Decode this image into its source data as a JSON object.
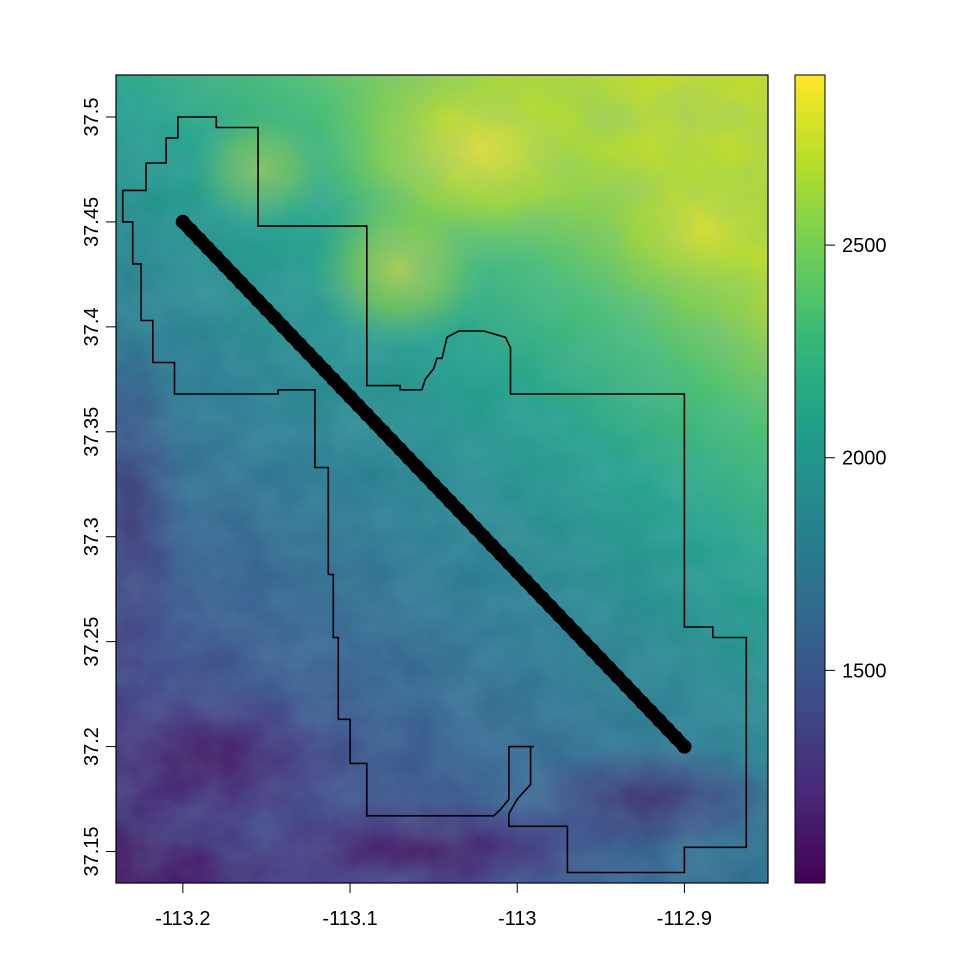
{
  "map": {
    "title": "",
    "x_axis": {
      "range": [
        -113.24,
        -112.85
      ],
      "ticks": [
        -113.2,
        -113.1,
        -113.0,
        -112.9
      ],
      "tick_labels": [
        "-113.2",
        "-113.1",
        "-113",
        "-112.9"
      ]
    },
    "y_axis": {
      "range": [
        37.135,
        37.52
      ],
      "ticks": [
        37.15,
        37.2,
        37.25,
        37.3,
        37.35,
        37.4,
        37.45,
        37.5
      ],
      "tick_labels": [
        "37.15",
        "37.2",
        "37.25",
        "37.3",
        "37.35",
        "37.4",
        "37.45",
        "37.5"
      ]
    },
    "legend": {
      "placement": "right",
      "range": [
        1000,
        2900
      ],
      "ticks": [
        1500,
        2000,
        2500
      ],
      "tick_labels": [
        "1500",
        "2000",
        "2500"
      ],
      "palette": [
        "#440154",
        "#482878",
        "#3e4a89",
        "#31688e",
        "#26828e",
        "#1f9e89",
        "#35b779",
        "#6ece58",
        "#b5de2b",
        "#fde725"
      ]
    },
    "transect_line": {
      "start": [
        -113.2,
        37.45
      ],
      "end": [
        -112.9,
        37.2
      ],
      "color": "#000000"
    },
    "boundary_polygon": [
      [
        -113.2,
        37.5
      ],
      [
        -113.18,
        37.5
      ],
      [
        -113.18,
        37.495
      ],
      [
        -113.155,
        37.495
      ],
      [
        -113.155,
        37.448
      ],
      [
        -113.09,
        37.448
      ],
      [
        -113.09,
        37.372
      ],
      [
        -113.07,
        37.372
      ],
      [
        -113.07,
        37.37
      ],
      [
        -113.057,
        37.37
      ],
      [
        -113.055,
        37.375
      ],
      [
        -113.05,
        37.38
      ],
      [
        -113.048,
        37.385
      ],
      [
        -113.045,
        37.385
      ],
      [
        -113.042,
        37.395
      ],
      [
        -113.035,
        37.398
      ],
      [
        -113.02,
        37.398
      ],
      [
        -113.007,
        37.395
      ],
      [
        -113.004,
        37.39
      ],
      [
        -113.004,
        37.368
      ],
      [
        -112.9,
        37.368
      ],
      [
        -112.9,
        37.257
      ],
      [
        -112.883,
        37.257
      ],
      [
        -112.883,
        37.252
      ],
      [
        -112.863,
        37.252
      ],
      [
        -112.863,
        37.152
      ],
      [
        -112.9,
        37.152
      ],
      [
        -112.9,
        37.14
      ],
      [
        -112.97,
        37.14
      ],
      [
        -112.97,
        37.162
      ],
      [
        -113.005,
        37.162
      ],
      [
        -113.005,
        37.168
      ],
      [
        -113.0,
        37.175
      ],
      [
        -112.992,
        37.182
      ],
      [
        -112.992,
        37.2
      ],
      [
        -112.99,
        37.2
      ],
      [
        -112.99,
        37.2
      ],
      [
        -113.005,
        37.2
      ],
      [
        -113.005,
        37.175
      ],
      [
        -113.01,
        37.17
      ],
      [
        -113.014,
        37.167
      ],
      [
        -113.09,
        37.167
      ],
      [
        -113.09,
        37.192
      ],
      [
        -113.1,
        37.192
      ],
      [
        -113.1,
        37.213
      ],
      [
        -113.107,
        37.213
      ],
      [
        -113.107,
        37.252
      ],
      [
        -113.11,
        37.252
      ],
      [
        -113.11,
        37.282
      ],
      [
        -113.113,
        37.282
      ],
      [
        -113.113,
        37.333
      ],
      [
        -113.121,
        37.333
      ],
      [
        -113.121,
        37.37
      ],
      [
        -113.143,
        37.37
      ],
      [
        -113.143,
        37.368
      ],
      [
        -113.205,
        37.368
      ],
      [
        -113.205,
        37.383
      ],
      [
        -113.218,
        37.383
      ],
      [
        -113.218,
        37.403
      ],
      [
        -113.225,
        37.403
      ],
      [
        -113.225,
        37.43
      ],
      [
        -113.23,
        37.43
      ],
      [
        -113.23,
        37.45
      ],
      [
        -113.236,
        37.45
      ],
      [
        -113.236,
        37.465
      ],
      [
        -113.222,
        37.465
      ],
      [
        -113.222,
        37.478
      ],
      [
        -113.21,
        37.478
      ],
      [
        -113.21,
        37.49
      ],
      [
        -113.203,
        37.49
      ],
      [
        -113.203,
        37.5
      ],
      [
        -113.2,
        37.5
      ]
    ]
  }
}
